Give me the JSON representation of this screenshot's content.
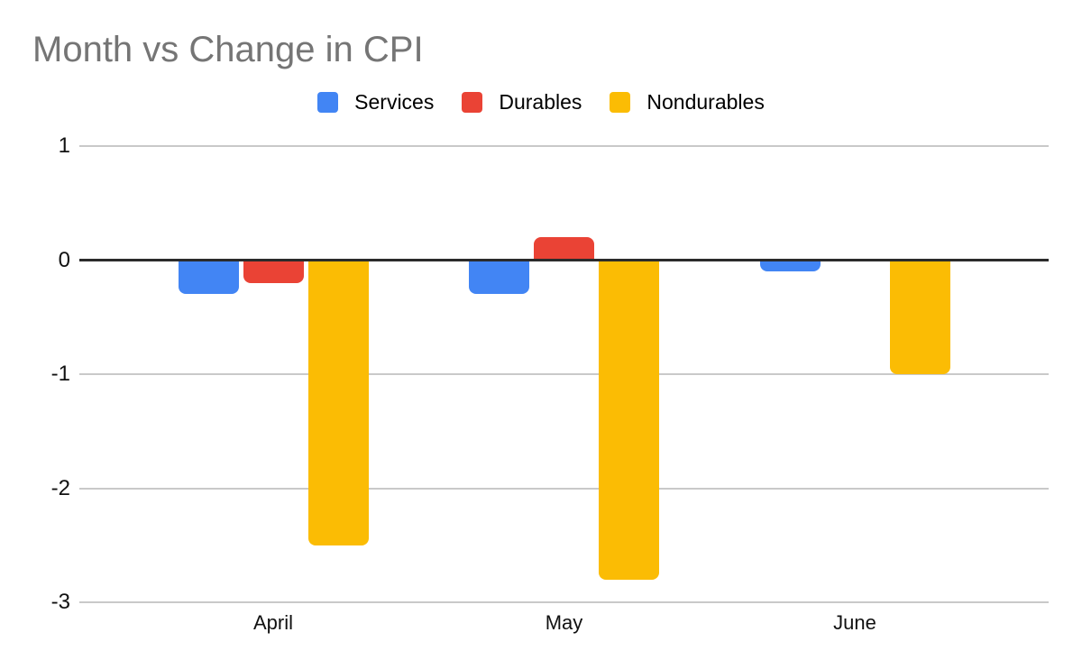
{
  "title": "Month vs Change in CPI",
  "chart_data": {
    "type": "bar",
    "title": "Month vs Change in CPI",
    "categories": [
      "April",
      "May",
      "June"
    ],
    "series": [
      {
        "name": "Services",
        "color": "#4285F4",
        "values": [
          -0.3,
          -0.3,
          -0.1
        ]
      },
      {
        "name": "Durables",
        "color": "#EA4335",
        "values": [
          -0.2,
          0.2,
          0.0
        ]
      },
      {
        "name": "Nondurables",
        "color": "#FBBC04",
        "values": [
          -2.5,
          -2.8,
          -1.0
        ]
      }
    ],
    "xlabel": "",
    "ylabel": "",
    "y_ticks": [
      1,
      0,
      -1,
      -2,
      -3
    ],
    "ylim": [
      -3,
      1
    ],
    "grid": true,
    "legend_position": "top",
    "colors": {
      "title_text": "#757575",
      "axis_text": "#111111",
      "legend_text": "#000000",
      "gridline": "#c9c9c9",
      "zero_line": "#2b2b2b",
      "background": "#ffffff"
    }
  }
}
